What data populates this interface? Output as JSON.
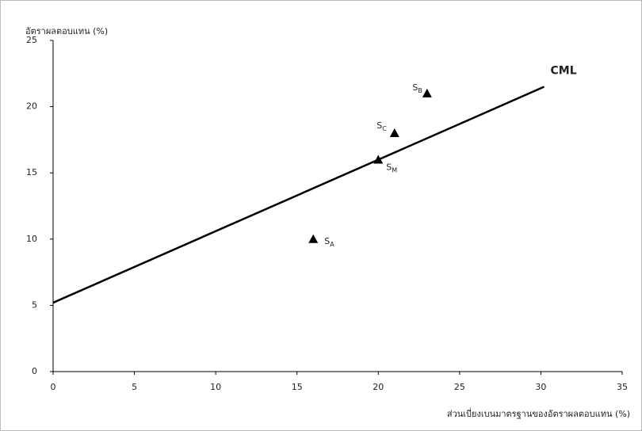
{
  "chart_data": {
    "type": "scatter",
    "y_label": "อัตราผลตอบแทน (%)",
    "x_label": "ส่วนเบี่ยงเบนมาตรฐานของอัตราผลตอบแทน (%)",
    "xlim": [
      0,
      35
    ],
    "ylim": [
      0,
      25
    ],
    "xticks": [
      0,
      5,
      10,
      15,
      20,
      25,
      30,
      35
    ],
    "yticks": [
      0,
      5,
      10,
      15,
      20,
      25
    ],
    "grid": false,
    "series": [
      {
        "name": "CML",
        "type": "line",
        "color": "#000000",
        "x": [
          0,
          30.2
        ],
        "values": [
          5.2,
          21.5
        ]
      },
      {
        "type": "scatter",
        "color": "#000000",
        "x": [
          16,
          23,
          21,
          20
        ],
        "values": [
          10,
          21,
          18,
          16
        ],
        "labels": [
          {
            "main": "S",
            "sub": "A"
          },
          {
            "main": "S",
            "sub": "B"
          },
          {
            "main": "S",
            "sub": "C"
          },
          {
            "main": "S",
            "sub": "M"
          }
        ]
      }
    ]
  }
}
